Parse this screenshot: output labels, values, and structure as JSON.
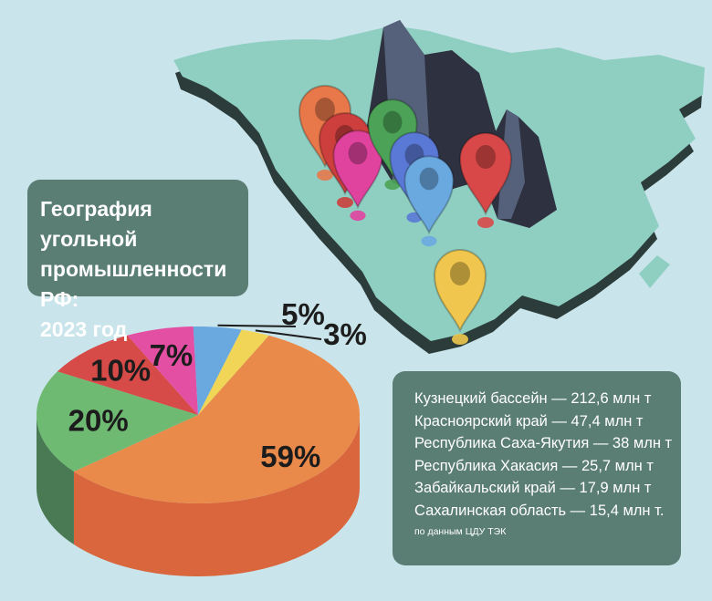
{
  "title": {
    "lines": [
      "География угольной",
      "промышленности РФ:",
      "2023 год"
    ]
  },
  "legend": {
    "items": [
      "Кузнецкий бассейн — 212,6 млн т",
      "Красноярский край — 47,4 млн т",
      "Республика Саха-Якутия — 38 млн т",
      "Республика Хакасия — 25,7 млн т",
      "Забайкальский край — 17,9 млн т",
      "Сахалинская область — 15,4 млн т."
    ],
    "source": "по данным ЦДУ ТЭК"
  },
  "chart_data": {
    "type": "pie",
    "slices": [
      {
        "value": 59,
        "label": "59%",
        "color": "#e98a4a",
        "side_color": "#d9663d"
      },
      {
        "value": 20,
        "label": "20%",
        "color": "#6fba72",
        "side_color": "#4a7a53"
      },
      {
        "value": 10,
        "label": "10%",
        "color": "#d64a48",
        "side_color": "#a53836"
      },
      {
        "value": 7,
        "label": "7%",
        "color": "#e24fa3",
        "side_color": "#b33c82"
      },
      {
        "value": 5,
        "label": "5%",
        "color": "#6aa8e0",
        "side_color": "#4a7fb0"
      },
      {
        "value": 3,
        "label": "3%",
        "color": "#f0d556",
        "side_color": "#c8ad3a"
      }
    ]
  },
  "map": {
    "pins": [
      {
        "color": "#e8784a"
      },
      {
        "color": "#cc3f3d"
      },
      {
        "color": "#e0439e"
      },
      {
        "color": "#4ca257"
      },
      {
        "color": "#5a79d6"
      },
      {
        "color": "#6aa8e0"
      },
      {
        "color": "#d84848"
      },
      {
        "color": "#f0c64e"
      }
    ]
  }
}
